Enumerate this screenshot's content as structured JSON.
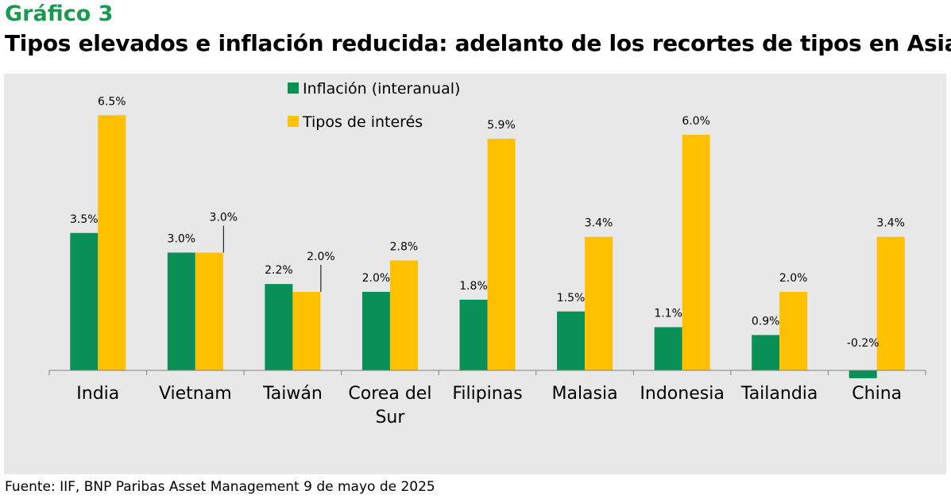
{
  "header": {
    "kicker": "Gráfico 3",
    "title": "Tipos elevados e inflación reducida: adelanto de los recortes de tipos en Asia"
  },
  "footer": {
    "source": "Fuente: IIF, BNP Paribas Asset Management  9 de mayo de 2025"
  },
  "chart_data": {
    "type": "bar",
    "categories": [
      "India",
      "Vietnam",
      "Taiwán",
      "Corea del Sur",
      "Filipinas",
      "Malasia",
      "Indonesia",
      "Tailandia",
      "China"
    ],
    "category_lines": [
      [
        "India"
      ],
      [
        "Vietnam"
      ],
      [
        "Taiwán"
      ],
      [
        "Corea del",
        "Sur"
      ],
      [
        "Filipinas"
      ],
      [
        "Malasia"
      ],
      [
        "Indonesia"
      ],
      [
        "Tailandia"
      ],
      [
        "China"
      ]
    ],
    "series": [
      {
        "name": "Inflación (interanual)",
        "color": "#0a8f56",
        "values": [
          3.5,
          3.0,
          2.2,
          2.0,
          1.8,
          1.5,
          1.1,
          0.9,
          -0.2
        ],
        "labels": [
          "3.5%",
          "3.0%",
          "2.2%",
          "2.0%",
          "1.8%",
          "1.5%",
          "1.1%",
          "0.9%",
          "-0.2%"
        ]
      },
      {
        "name": "Tipos de interés",
        "color": "#ffc000",
        "values": [
          6.5,
          3.0,
          2.0,
          2.8,
          5.9,
          3.4,
          6.0,
          2.0,
          3.4
        ],
        "labels": [
          "6.5%",
          "3.0%",
          "2.0%",
          "2.8%",
          "5.9%",
          "3.4%",
          "6.0%",
          "2.0%",
          "3.4%"
        ]
      }
    ],
    "xlabel": "",
    "ylabel": "",
    "ylim": [
      -0.2,
      6.5
    ],
    "grid": false,
    "legend": "top-center",
    "background": "#e8e8e8"
  }
}
